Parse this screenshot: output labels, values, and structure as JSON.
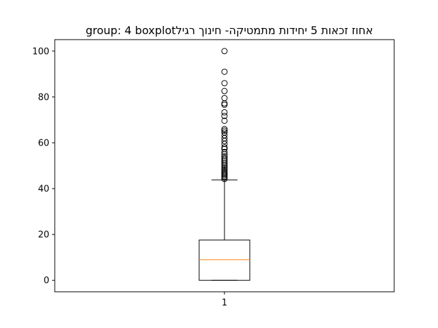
{
  "chart_data": {
    "type": "boxplot",
    "title": "אחוז זכאות 5 יחידות מתמטיקה- חינוך רגילgroup: 4 boxplot",
    "xlabel": "",
    "ylabel": "",
    "grid": false,
    "categories": [
      "1"
    ],
    "ylim": [
      -5,
      105
    ],
    "yticks": [
      0,
      20,
      40,
      60,
      80,
      100
    ],
    "boxes": [
      {
        "category": "1",
        "whisker_low": 0,
        "q1": 0,
        "median": 9,
        "q3": 17.6,
        "whisker_high": 43.8,
        "outliers": [
          44.2,
          44.8,
          45.3,
          45.9,
          46.4,
          47.0,
          47.6,
          48.3,
          49.0,
          49.6,
          50.3,
          51.0,
          51.9,
          52.6,
          53.3,
          54.1,
          55.0,
          56.0,
          57.3,
          58.0,
          59.5,
          60.8,
          62.0,
          63.3,
          64.5,
          65.3,
          66.0,
          69.6,
          71.7,
          73.3,
          76.6,
          77.2,
          79.5,
          82.6,
          86.0,
          91.0,
          100.0
        ]
      }
    ],
    "colors": {
      "box": "#000000",
      "median": "#ff7f0e",
      "outlier": "#000000",
      "background": "#ffffff"
    }
  }
}
